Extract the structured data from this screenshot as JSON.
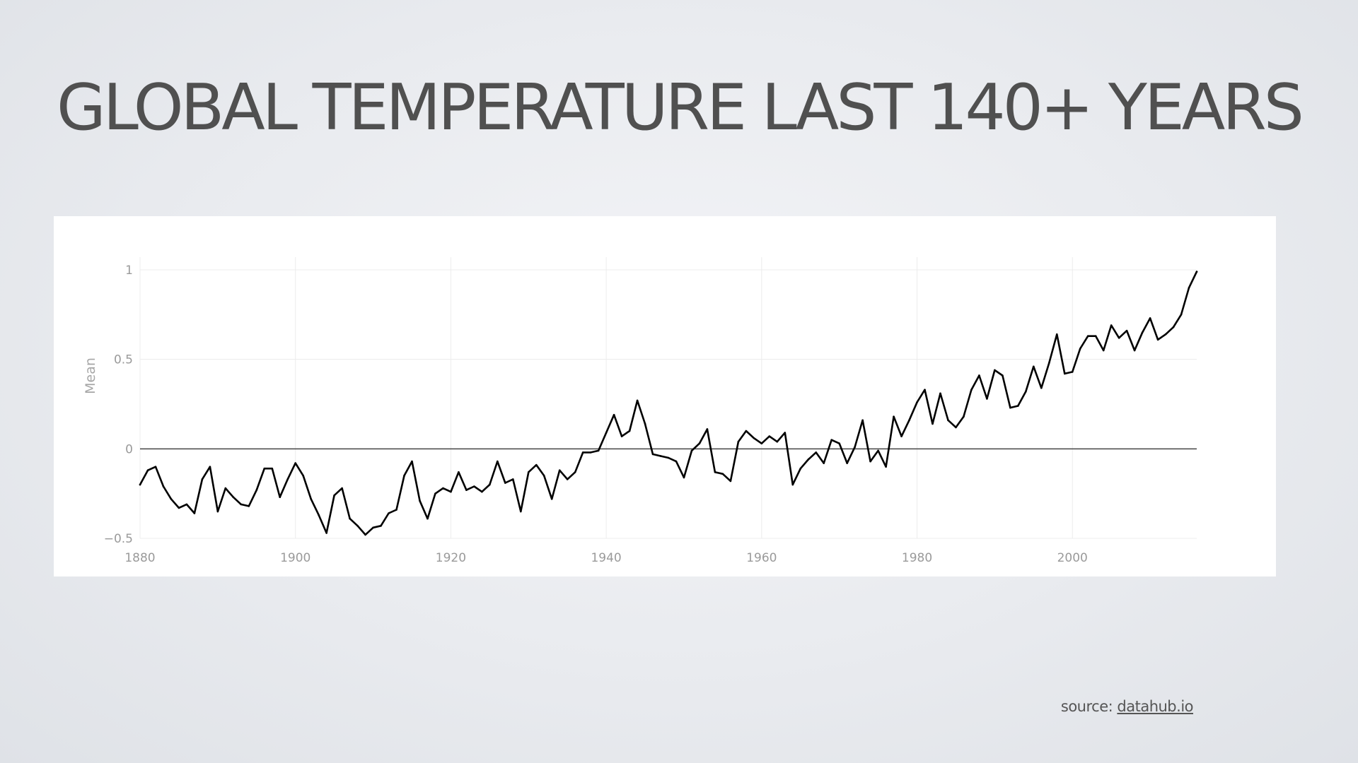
{
  "slide": {
    "title": "GLOBAL TEMPERATURE LAST 140+ YEARS"
  },
  "source": {
    "prefix": "source: ",
    "link_text": "datahub.io"
  },
  "colors": {
    "line": "#000000",
    "zero_line": "#444444",
    "grid": "#ececec",
    "tick_text": "#9a9a9a"
  },
  "chart_data": {
    "type": "line",
    "title": "",
    "xlabel": "",
    "ylabel": "Mean",
    "xlim": [
      1880,
      2016
    ],
    "ylim": [
      -0.5,
      1.0
    ],
    "x_ticks": [
      1880,
      1900,
      1920,
      1940,
      1960,
      1980,
      2000
    ],
    "y_ticks": [
      -0.5,
      0,
      0.5,
      1
    ],
    "y_tick_labels": [
      "−0.5",
      "0",
      "0.5",
      "1"
    ],
    "grid": true,
    "legend": "none",
    "series": [
      {
        "x": [
          1880,
          1881,
          1882,
          1883,
          1884,
          1885,
          1886,
          1887,
          1888,
          1889,
          1890,
          1891,
          1892,
          1893,
          1894,
          1895,
          1896,
          1897,
          1898,
          1899,
          1900,
          1901,
          1902,
          1903,
          1904,
          1905,
          1906,
          1907,
          1908,
          1909,
          1910,
          1911,
          1912,
          1913,
          1914,
          1915,
          1916,
          1917,
          1918,
          1919,
          1920,
          1921,
          1922,
          1923,
          1924,
          1925,
          1926,
          1927,
          1928,
          1929,
          1930,
          1931,
          1932,
          1933,
          1934,
          1935,
          1936,
          1937,
          1938,
          1939,
          1940,
          1941,
          1942,
          1943,
          1944,
          1945,
          1946,
          1947,
          1948,
          1949,
          1950,
          1951,
          1952,
          1953,
          1954,
          1955,
          1956,
          1957,
          1958,
          1959,
          1960,
          1961,
          1962,
          1963,
          1964,
          1965,
          1966,
          1967,
          1968,
          1969,
          1970,
          1971,
          1972,
          1973,
          1974,
          1975,
          1976,
          1977,
          1978,
          1979,
          1980,
          1981,
          1982,
          1983,
          1984,
          1985,
          1986,
          1987,
          1988,
          1989,
          1990,
          1991,
          1992,
          1993,
          1994,
          1995,
          1996,
          1997,
          1998,
          1999,
          2000,
          2001,
          2002,
          2003,
          2004,
          2005,
          2006,
          2007,
          2008,
          2009,
          2010,
          2011,
          2012,
          2013,
          2014,
          2015,
          2016
        ],
        "y": [
          -0.2,
          -0.12,
          -0.1,
          -0.21,
          -0.28,
          -0.33,
          -0.31,
          -0.36,
          -0.17,
          -0.1,
          -0.35,
          -0.22,
          -0.27,
          -0.31,
          -0.32,
          -0.23,
          -0.11,
          -0.11,
          -0.27,
          -0.17,
          -0.08,
          -0.15,
          -0.28,
          -0.37,
          -0.47,
          -0.26,
          -0.22,
          -0.39,
          -0.43,
          -0.48,
          -0.44,
          -0.43,
          -0.36,
          -0.34,
          -0.15,
          -0.07,
          -0.29,
          -0.39,
          -0.25,
          -0.22,
          -0.24,
          -0.13,
          -0.23,
          -0.21,
          -0.24,
          -0.2,
          -0.07,
          -0.19,
          -0.17,
          -0.35,
          -0.13,
          -0.09,
          -0.15,
          -0.28,
          -0.12,
          -0.17,
          -0.13,
          -0.02,
          -0.02,
          -0.01,
          0.09,
          0.19,
          0.07,
          0.1,
          0.27,
          0.14,
          -0.03,
          -0.04,
          -0.05,
          -0.07,
          -0.16,
          -0.01,
          0.03,
          0.11,
          -0.13,
          -0.14,
          -0.18,
          0.04,
          0.1,
          0.06,
          0.03,
          0.07,
          0.04,
          0.09,
          -0.2,
          -0.11,
          -0.06,
          -0.02,
          -0.08,
          0.05,
          0.03,
          -0.08,
          0.01,
          0.16,
          -0.07,
          -0.01,
          -0.1,
          0.18,
          0.07,
          0.16,
          0.26,
          0.33,
          0.14,
          0.31,
          0.16,
          0.12,
          0.18,
          0.33,
          0.41,
          0.28,
          0.44,
          0.41,
          0.23,
          0.24,
          0.32,
          0.46,
          0.34,
          0.48,
          0.64,
          0.42,
          0.43,
          0.56,
          0.63,
          0.63,
          0.55,
          0.69,
          0.62,
          0.66,
          0.55,
          0.65,
          0.73,
          0.61,
          0.64,
          0.68,
          0.75,
          0.9,
          0.99
        ]
      }
    ]
  }
}
